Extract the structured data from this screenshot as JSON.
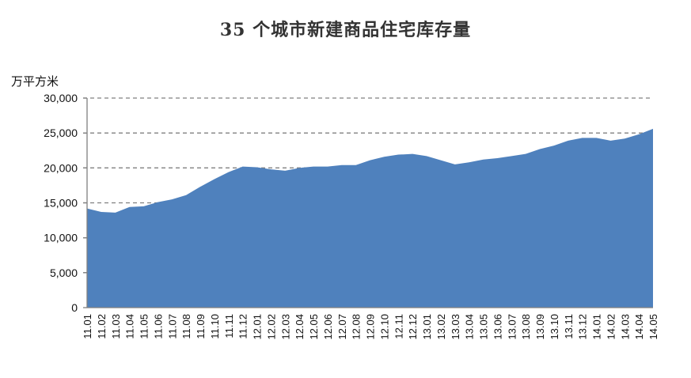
{
  "chart_data": {
    "type": "area",
    "title": "35 个城市新建商品住宅库存量",
    "ylabel": "万平方米",
    "xlabel": "",
    "ylim": [
      0,
      30000
    ],
    "y_ticks": [
      "0",
      "5,000",
      "10,000",
      "15,000",
      "20,000",
      "25,000",
      "30,000"
    ],
    "grid": "horizontal dashed",
    "legend": "none",
    "colors": {
      "area": "#4f81bd",
      "grid": "#808080",
      "axis": "#808080"
    },
    "x": [
      "11.01",
      "11.02",
      "11.03",
      "11.04",
      "11.05",
      "11.06",
      "11.07",
      "11.08",
      "11.09",
      "11.10",
      "11.11",
      "11.12",
      "12.01",
      "12.02",
      "12.03",
      "12.04",
      "12.05",
      "12.06",
      "12.07",
      "12.08",
      "12.09",
      "12.10",
      "12.11",
      "12.12",
      "13.01",
      "13.02",
      "13.03",
      "13.04",
      "13.05",
      "13.06",
      "13.07",
      "13.08",
      "13.09",
      "13.10",
      "13.11",
      "13.12",
      "14.01",
      "14.02",
      "14.03",
      "14.04",
      "14.05"
    ],
    "values": [
      14200,
      13700,
      13600,
      14400,
      14500,
      15100,
      15500,
      16100,
      17300,
      18400,
      19400,
      20200,
      20100,
      19800,
      19600,
      20000,
      20200,
      20200,
      20400,
      20400,
      21100,
      21600,
      21900,
      22000,
      21700,
      21100,
      20500,
      20800,
      21200,
      21400,
      21700,
      22000,
      22700,
      23200,
      23900,
      24300,
      24300,
      23900,
      24200,
      24800,
      25600
    ]
  }
}
